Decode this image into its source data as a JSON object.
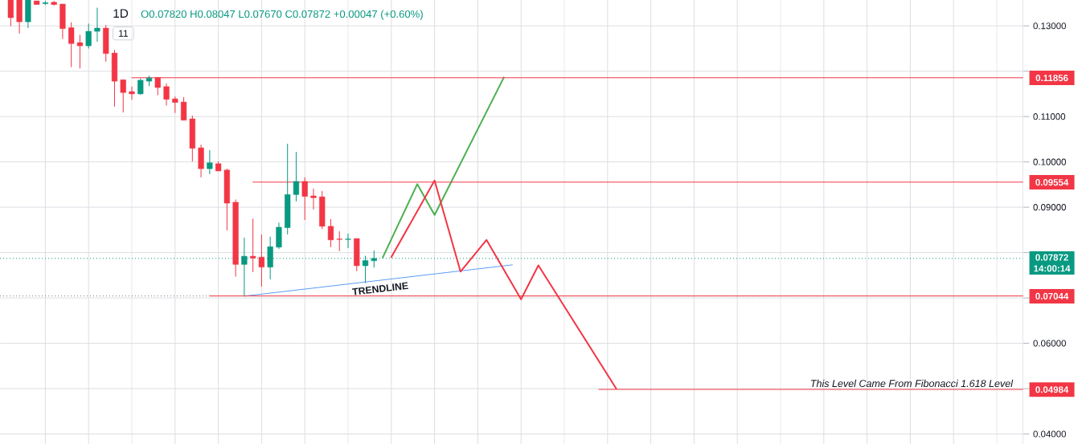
{
  "chart_data": {
    "type": "candlestick",
    "title": "1D",
    "subtitle": "O0.07820 H0.08047 L0.07670 C0.07872 +0.00047 (+0.60%)",
    "annotations": [
      "11"
    ],
    "categories": [
      null,
      null,
      null,
      null,
      null,
      null,
      null,
      null,
      null,
      null,
      null,
      null,
      null,
      null,
      null,
      null,
      null,
      null,
      null,
      null,
      null,
      null,
      null,
      null,
      null,
      null,
      null,
      null,
      null,
      null,
      null,
      null,
      null,
      null,
      null,
      null,
      null,
      null,
      null,
      null,
      null,
      null,
      null,
      null,
      null,
      null,
      null,
      null,
      null,
      null,
      null,
      null,
      null,
      null,
      null,
      null,
      null,
      null,
      null,
      null,
      null,
      null,
      null,
      null,
      null,
      null,
      null,
      null,
      null,
      null,
      null,
      null,
      null,
      null,
      null,
      null,
      null,
      null,
      null,
      null,
      null,
      null,
      null,
      null,
      null,
      null,
      null,
      null,
      null,
      null,
      null,
      null,
      null,
      null,
      null,
      null,
      null,
      null,
      null,
      null,
      null,
      null,
      null,
      null,
      null,
      null,
      null,
      null,
      null,
      null,
      null,
      null,
      null,
      null,
      null,
      null,
      null,
      null
    ],
    "ohlc": [
      [
        0.1357,
        0.1357,
        0.1299,
        0.1318
      ],
      [
        0.1357,
        0.1357,
        0.1283,
        0.1309
      ],
      [
        0.1309,
        0.1357,
        0.1295,
        0.1357
      ],
      [
        0.1355,
        0.1355,
        0.1347,
        0.1347
      ],
      [
        0.1349,
        0.1355,
        0.1346,
        0.1351
      ],
      [
        0.1352,
        0.1355,
        0.1345,
        0.1347
      ],
      [
        0.1348,
        0.1348,
        0.1271,
        0.1294
      ],
      [
        0.1296,
        0.1308,
        0.1209,
        0.1261
      ],
      [
        0.1263,
        0.128,
        0.1206,
        0.1256
      ],
      [
        0.1256,
        0.1305,
        0.125,
        0.1288
      ],
      [
        0.1288,
        0.134,
        0.1265,
        0.1295
      ],
      [
        0.1295,
        0.1302,
        0.1221,
        0.1239
      ],
      [
        0.124,
        0.1247,
        0.1122,
        0.1178
      ],
      [
        0.1181,
        0.1181,
        0.1109,
        0.1153
      ],
      [
        0.1155,
        0.1166,
        0.1137,
        0.115
      ],
      [
        0.115,
        0.1184,
        0.1148,
        0.118
      ],
      [
        0.1178,
        0.119,
        0.1167,
        0.1185
      ],
      [
        0.1186,
        0.1186,
        0.1147,
        0.1164
      ],
      [
        0.1166,
        0.1173,
        0.1124,
        0.1138
      ],
      [
        0.1139,
        0.1144,
        0.1108,
        0.1131
      ],
      [
        0.1132,
        0.1143,
        0.1092,
        0.1092
      ],
      [
        0.1095,
        0.1102,
        0.1001,
        0.103
      ],
      [
        0.1031,
        0.1038,
        0.0966,
        0.0985
      ],
      [
        0.0985,
        0.1026,
        0.0973,
        0.0998
      ],
      [
        0.0996,
        0.1001,
        0.098,
        0.098
      ],
      [
        0.0982,
        0.0985,
        0.0849,
        0.0909
      ],
      [
        0.0911,
        0.0917,
        0.0747,
        0.0774
      ],
      [
        0.0774,
        0.0833,
        0.07044,
        0.0792
      ],
      [
        0.0792,
        0.0875,
        0.0757,
        0.0788
      ],
      [
        0.079,
        0.084,
        0.0725,
        0.0768
      ],
      [
        0.0768,
        0.0835,
        0.0741,
        0.0813
      ],
      [
        0.0812,
        0.0866,
        0.0808,
        0.0856
      ],
      [
        0.0855,
        0.104,
        0.084,
        0.0928
      ],
      [
        0.0928,
        0.1022,
        0.0913,
        0.0957
      ],
      [
        0.0957,
        0.0966,
        0.0872,
        0.0924
      ],
      [
        0.0925,
        0.0941,
        0.0895,
        0.0921
      ],
      [
        0.0923,
        0.0936,
        0.0852,
        0.0858
      ],
      [
        0.0858,
        0.0874,
        0.0812,
        0.0828
      ],
      [
        0.083,
        0.0847,
        0.0803,
        0.0829
      ],
      [
        0.0829,
        0.0842,
        0.081,
        0.083
      ],
      [
        0.0831,
        0.0831,
        0.0759,
        0.0771
      ],
      [
        0.0771,
        0.0793,
        0.0733,
        0.07825
      ],
      [
        0.0782,
        0.08047,
        0.0767,
        0.07872
      ],
      null,
      null,
      null,
      null,
      null,
      null,
      null,
      null,
      null,
      null,
      null,
      null,
      null,
      null,
      null,
      null,
      null,
      null,
      null,
      null,
      null,
      null,
      null,
      null,
      null,
      null,
      null,
      null,
      null,
      null,
      null,
      null,
      null,
      null,
      null,
      null,
      null,
      null,
      null,
      null,
      null,
      null,
      null,
      null,
      null,
      null,
      null,
      null,
      null,
      null,
      null,
      null,
      null,
      null,
      null,
      null,
      null,
      null,
      null,
      null,
      null,
      null,
      null,
      null,
      null,
      null,
      null,
      null,
      null,
      null,
      null,
      null,
      null,
      null,
      null
    ],
    "colors": [
      "#f23645",
      "#f23645",
      "#089981",
      "#f23645",
      "#089981",
      "#f23645",
      "#f23645",
      "#f23645",
      "#f23645",
      "#089981",
      "#089981",
      "#f23645",
      "#f23645",
      "#f23645",
      "#f23645",
      "#089981",
      "#089981",
      "#f23645",
      "#f23645",
      "#f23645",
      "#f23645",
      "#f23645",
      "#f23645",
      "#089981",
      "#f23645",
      "#f23645",
      "#f23645",
      "#089981",
      "#f23645",
      "#f23645",
      "#089981",
      "#089981",
      "#089981",
      "#089981",
      "#f23645",
      "#f23645",
      "#f23645",
      "#f23645",
      "#f23645",
      "#089981",
      "#f23645",
      "#089981",
      "#089981",
      null,
      null,
      null,
      null,
      null,
      null,
      null,
      null,
      null,
      null,
      null,
      null,
      null,
      null,
      null,
      null,
      null,
      null,
      null,
      null,
      null,
      null,
      null,
      null,
      null,
      null,
      null,
      null,
      null,
      null,
      null,
      null,
      null,
      null,
      null,
      null,
      null,
      null,
      null,
      null,
      null,
      null,
      null,
      null,
      null,
      null,
      null,
      null,
      null,
      null,
      null,
      null,
      null,
      null,
      null,
      null,
      null,
      null,
      null,
      null,
      null,
      null,
      null,
      null,
      null,
      null,
      null,
      null,
      null,
      null,
      null,
      null,
      null,
      null,
      null
    ],
    "series": [
      {
        "type": "line",
        "name": "TRENDLINE",
        "color": "#5b9cf6",
        "values": [
          null,
          null,
          null,
          null,
          null,
          null,
          null,
          null,
          null,
          null,
          null,
          null,
          null,
          null,
          null,
          null,
          null,
          null,
          null,
          null,
          null,
          null,
          null,
          null,
          null,
          null,
          null,
          0.0704,
          null,
          null,
          null,
          null,
          null,
          null,
          null,
          null,
          null,
          null,
          null,
          null,
          null,
          null,
          null,
          null,
          null,
          null,
          null,
          null,
          null,
          null,
          null,
          null,
          null,
          null,
          null,
          null,
          null,
          null,
          0.0773,
          null,
          null,
          null,
          null,
          null,
          null,
          null,
          null,
          null,
          null,
          null,
          null,
          null,
          null,
          null,
          null,
          null,
          null,
          null,
          null,
          null,
          null,
          null,
          null,
          null,
          null,
          null,
          null,
          null,
          null,
          null,
          null,
          null,
          null,
          null,
          null,
          null,
          null,
          null,
          null,
          null,
          null,
          null,
          null,
          null,
          null,
          null,
          null,
          null,
          null,
          null,
          null,
          null,
          null,
          null,
          null,
          null,
          null,
          null
        ]
      },
      {
        "type": "line",
        "color": "#4caf50",
        "values": [
          null,
          null,
          null,
          null,
          null,
          null,
          null,
          null,
          null,
          null,
          null,
          null,
          null,
          null,
          null,
          null,
          null,
          null,
          null,
          null,
          null,
          null,
          null,
          null,
          null,
          null,
          null,
          null,
          null,
          null,
          null,
          null,
          null,
          null,
          null,
          null,
          null,
          null,
          null,
          null,
          null,
          null,
          null,
          0.0789,
          null,
          null,
          null,
          0.0951,
          null,
          0.0883,
          null,
          null,
          null,
          null,
          null,
          null,
          null,
          0.1186,
          null,
          null,
          null,
          null,
          null,
          null,
          null,
          null,
          null,
          null,
          null,
          null,
          null,
          null,
          null,
          null,
          null,
          null,
          null,
          null,
          null,
          null,
          null,
          null,
          null,
          null,
          null,
          null,
          null,
          null,
          null,
          null,
          null,
          null,
          null,
          null,
          null,
          null,
          null,
          null,
          null,
          null,
          null,
          null,
          null,
          null,
          null,
          null,
          null,
          null,
          null,
          null,
          null,
          null,
          null,
          null,
          null,
          null,
          null,
          null
        ]
      },
      {
        "type": "line",
        "color": "#f23645",
        "values": [
          null,
          null,
          null,
          null,
          null,
          null,
          null,
          null,
          null,
          null,
          null,
          null,
          null,
          null,
          null,
          null,
          null,
          null,
          null,
          null,
          null,
          null,
          null,
          null,
          null,
          null,
          null,
          null,
          null,
          null,
          null,
          null,
          null,
          null,
          null,
          null,
          null,
          null,
          null,
          null,
          null,
          null,
          null,
          null,
          0.079,
          null,
          null,
          null,
          null,
          0.0959,
          null,
          null,
          0.0758,
          null,
          null,
          0.0828,
          null,
          null,
          null,
          0.0697,
          null,
          0.0772,
          null,
          null,
          null,
          null,
          null,
          null,
          null,
          null,
          0.05,
          null,
          null,
          null,
          null,
          null,
          null,
          null,
          null,
          null,
          null,
          null,
          null,
          null,
          null,
          null,
          null,
          null,
          null,
          null,
          null,
          null,
          null,
          null,
          null,
          null,
          null,
          null,
          null,
          null,
          null,
          null,
          null,
          null,
          null,
          null,
          null,
          null,
          null,
          null,
          null,
          null,
          null,
          null,
          null,
          null,
          null,
          null
        ]
      },
      {
        "type": "line",
        "color": "#f23645",
        "values": [
          null,
          null,
          null,
          null,
          null,
          null,
          null,
          null,
          null,
          null,
          null,
          null,
          null,
          null,
          0.11856,
          null,
          null,
          null,
          null,
          null,
          null,
          null,
          null,
          null,
          null,
          null,
          null,
          null,
          null,
          null,
          null,
          null,
          null,
          null,
          null,
          null,
          null,
          null,
          null,
          null,
          null,
          null,
          null,
          null,
          null,
          null,
          null,
          null,
          null,
          null,
          null,
          null,
          null,
          null,
          null,
          null,
          null,
          null,
          null,
          null,
          null,
          null,
          null,
          null,
          null,
          null,
          null,
          null,
          null,
          null,
          null,
          null,
          null,
          null,
          null,
          null,
          null,
          null,
          null,
          null,
          null,
          null,
          null,
          null,
          null,
          null,
          null,
          null,
          null,
          null,
          null,
          null,
          null,
          null,
          null,
          null,
          null,
          null,
          null,
          null,
          null,
          null,
          null,
          null,
          null,
          null,
          null,
          null,
          null,
          null,
          null,
          null,
          null,
          null,
          null,
          null,
          null,
          0.11856
        ],
        "value_labels": [
          null,
          null,
          null,
          null,
          null,
          null,
          null,
          null,
          null,
          null,
          null,
          null,
          null,
          null,
          null,
          null,
          null,
          null,
          null,
          null,
          null,
          null,
          null,
          null,
          null,
          null,
          null,
          null,
          null,
          null,
          null,
          null,
          null,
          null,
          null,
          null,
          null,
          null,
          null,
          null,
          null,
          null,
          null,
          null,
          null,
          null,
          null,
          null,
          null,
          null,
          null,
          null,
          null,
          null,
          null,
          null,
          null,
          null,
          null,
          null,
          null,
          null,
          null,
          null,
          null,
          null,
          null,
          null,
          null,
          null,
          null,
          null,
          null,
          null,
          null,
          null,
          null,
          null,
          null,
          null,
          null,
          null,
          null,
          null,
          null,
          null,
          null,
          null,
          null,
          null,
          null,
          null,
          null,
          null,
          null,
          null,
          null,
          null,
          null,
          null,
          null,
          null,
          null,
          null,
          null,
          null,
          null,
          null,
          null,
          null,
          null,
          null,
          null,
          null,
          null,
          null,
          null,
          "0.11856"
        ]
      },
      {
        "type": "line",
        "color": "#f23645",
        "values": [
          null,
          null,
          null,
          null,
          null,
          null,
          null,
          null,
          null,
          null,
          null,
          null,
          null,
          null,
          null,
          null,
          null,
          null,
          null,
          null,
          null,
          null,
          null,
          null,
          null,
          null,
          null,
          null,
          0.09554,
          null,
          null,
          null,
          null,
          null,
          null,
          null,
          null,
          null,
          null,
          null,
          null,
          null,
          null,
          null,
          null,
          null,
          null,
          null,
          null,
          null,
          null,
          null,
          null,
          null,
          null,
          null,
          null,
          null,
          null,
          null,
          null,
          null,
          null,
          null,
          null,
          null,
          null,
          null,
          null,
          null,
          null,
          null,
          null,
          null,
          null,
          null,
          null,
          null,
          null,
          null,
          null,
          null,
          null,
          null,
          null,
          null,
          null,
          null,
          null,
          null,
          null,
          null,
          null,
          null,
          null,
          null,
          null,
          null,
          null,
          null,
          null,
          null,
          null,
          null,
          null,
          null,
          null,
          null,
          null,
          null,
          null,
          null,
          null,
          null,
          null,
          null,
          null,
          0.09554
        ],
        "value_labels": [
          null,
          null,
          null,
          null,
          null,
          null,
          null,
          null,
          null,
          null,
          null,
          null,
          null,
          null,
          null,
          null,
          null,
          null,
          null,
          null,
          null,
          null,
          null,
          null,
          null,
          null,
          null,
          null,
          null,
          null,
          null,
          null,
          null,
          null,
          null,
          null,
          null,
          null,
          null,
          null,
          null,
          null,
          null,
          null,
          null,
          null,
          null,
          null,
          null,
          null,
          null,
          null,
          null,
          null,
          null,
          null,
          null,
          null,
          null,
          null,
          null,
          null,
          null,
          null,
          null,
          null,
          null,
          null,
          null,
          null,
          null,
          null,
          null,
          null,
          null,
          null,
          null,
          null,
          null,
          null,
          null,
          null,
          null,
          null,
          null,
          null,
          null,
          null,
          null,
          null,
          null,
          null,
          null,
          null,
          null,
          null,
          null,
          null,
          null,
          null,
          null,
          null,
          null,
          null,
          null,
          null,
          null,
          null,
          null,
          null,
          null,
          null,
          null,
          null,
          null,
          null,
          null,
          "0.09554"
        ]
      },
      {
        "type": "line",
        "color": "#f23645",
        "values": [
          null,
          null,
          null,
          null,
          null,
          null,
          null,
          null,
          null,
          null,
          null,
          null,
          null,
          null,
          null,
          null,
          null,
          null,
          null,
          null,
          null,
          null,
          null,
          0.07044,
          null,
          null,
          null,
          null,
          null,
          null,
          null,
          null,
          null,
          null,
          null,
          null,
          null,
          null,
          null,
          null,
          null,
          null,
          null,
          null,
          null,
          null,
          null,
          null,
          null,
          null,
          null,
          null,
          null,
          null,
          null,
          null,
          null,
          null,
          null,
          null,
          null,
          null,
          null,
          null,
          null,
          null,
          null,
          null,
          null,
          null,
          null,
          null,
          null,
          null,
          null,
          null,
          null,
          null,
          null,
          null,
          null,
          null,
          null,
          null,
          null,
          null,
          null,
          null,
          null,
          null,
          null,
          null,
          null,
          null,
          null,
          null,
          null,
          null,
          null,
          null,
          null,
          null,
          null,
          null,
          null,
          null,
          null,
          null,
          null,
          null,
          null,
          null,
          null,
          null,
          null,
          null,
          null,
          0.07044
        ],
        "value_labels": [
          null,
          null,
          null,
          null,
          null,
          null,
          null,
          null,
          null,
          null,
          null,
          null,
          null,
          null,
          null,
          null,
          null,
          null,
          null,
          null,
          null,
          null,
          null,
          null,
          null,
          null,
          null,
          null,
          null,
          null,
          null,
          null,
          null,
          null,
          null,
          null,
          null,
          null,
          null,
          null,
          null,
          null,
          null,
          null,
          null,
          null,
          null,
          null,
          null,
          null,
          null,
          null,
          null,
          null,
          null,
          null,
          null,
          null,
          null,
          null,
          null,
          null,
          null,
          null,
          null,
          null,
          null,
          null,
          null,
          null,
          null,
          null,
          null,
          null,
          null,
          null,
          null,
          null,
          null,
          null,
          null,
          null,
          null,
          null,
          null,
          null,
          null,
          null,
          null,
          null,
          null,
          null,
          null,
          null,
          null,
          null,
          null,
          null,
          null,
          null,
          null,
          null,
          null,
          null,
          null,
          null,
          null,
          null,
          null,
          null,
          null,
          null,
          null,
          null,
          null,
          null,
          null,
          "0.07044"
        ]
      },
      {
        "type": "line",
        "name": "This Level Came From Fibonacci 1.618 Level",
        "color": "#f23645",
        "values": [
          null,
          null,
          null,
          null,
          null,
          null,
          null,
          null,
          null,
          null,
          null,
          null,
          null,
          null,
          null,
          null,
          null,
          null,
          null,
          null,
          null,
          null,
          null,
          null,
          null,
          null,
          null,
          null,
          null,
          null,
          null,
          null,
          null,
          null,
          null,
          null,
          null,
          null,
          null,
          null,
          null,
          null,
          null,
          null,
          null,
          null,
          null,
          null,
          null,
          null,
          null,
          null,
          null,
          null,
          null,
          null,
          null,
          null,
          null,
          null,
          null,
          null,
          null,
          null,
          null,
          null,
          null,
          null,
          0.04984,
          null,
          null,
          null,
          null,
          null,
          null,
          null,
          null,
          null,
          null,
          null,
          null,
          null,
          null,
          null,
          null,
          null,
          null,
          null,
          null,
          null,
          null,
          null,
          null,
          null,
          null,
          null,
          null,
          null,
          null,
          null,
          null,
          null,
          null,
          null,
          null,
          null,
          null,
          null,
          null,
          null,
          null,
          null,
          null,
          null,
          null,
          null,
          null,
          0.04984
        ],
        "value_labels": [
          null,
          null,
          null,
          null,
          null,
          null,
          null,
          null,
          null,
          null,
          null,
          null,
          null,
          null,
          null,
          null,
          null,
          null,
          null,
          null,
          null,
          null,
          null,
          null,
          null,
          null,
          null,
          null,
          null,
          null,
          null,
          null,
          null,
          null,
          null,
          null,
          null,
          null,
          null,
          null,
          null,
          null,
          null,
          null,
          null,
          null,
          null,
          null,
          null,
          null,
          null,
          null,
          null,
          null,
          null,
          null,
          null,
          null,
          null,
          null,
          null,
          null,
          null,
          null,
          null,
          null,
          null,
          null,
          null,
          null,
          null,
          null,
          null,
          null,
          null,
          null,
          null,
          null,
          null,
          null,
          null,
          null,
          null,
          null,
          null,
          null,
          null,
          null,
          null,
          null,
          null,
          null,
          null,
          null,
          null,
          null,
          null,
          null,
          null,
          null,
          null,
          null,
          null,
          null,
          null,
          null,
          null,
          null,
          null,
          null,
          null,
          null,
          null,
          null,
          null,
          null,
          null,
          "0.04984"
        ]
      }
    ],
    "ref_lines": [
      {
        "axis": "y",
        "value": 0.07872,
        "label": "0.07872 14:00:14",
        "color": "#089981",
        "line_style": "dotted"
      },
      {
        "axis": "y",
        "value": 0.07044,
        "color": "#787b86",
        "line_style": "dotted"
      }
    ],
    "ylim": [
      0.0378,
      0.1357
    ],
    "yticks": [
      {
        "value": 0.04,
        "label": "0.04000"
      },
      {
        "value": 0.05,
        "label": null
      },
      {
        "value": 0.06,
        "label": "0.06000"
      },
      {
        "value": 0.07,
        "label": null
      },
      {
        "value": 0.08,
        "label": null
      },
      {
        "value": 0.09,
        "label": "0.09000"
      },
      {
        "value": 0.1,
        "label": "0.10000"
      },
      {
        "value": 0.11,
        "label": "0.11000"
      },
      {
        "value": 0.12,
        "label": null
      },
      {
        "value": 0.13,
        "label": "0.13000"
      }
    ],
    "grid": true,
    "tick_labels": "y"
  }
}
